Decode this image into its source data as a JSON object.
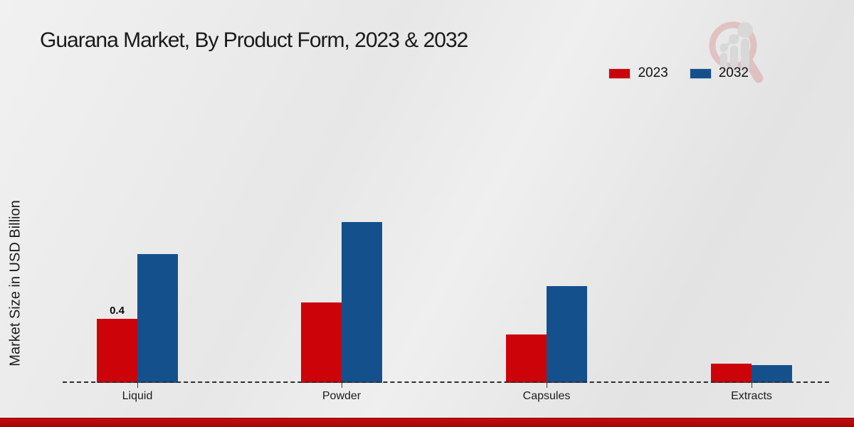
{
  "chart_data": {
    "type": "bar",
    "title": "Guarana Market, By Product Form, 2023 & 2032",
    "ylabel": "Market Size in USD Billion",
    "xlabel": "",
    "categories": [
      "Liquid",
      "Powder",
      "Capsules",
      "Extracts"
    ],
    "series": [
      {
        "name": "2023",
        "color": "#cc0409",
        "values": [
          0.4,
          0.5,
          0.3,
          0.12
        ]
      },
      {
        "name": "2032",
        "color": "#14508c",
        "values": [
          0.8,
          1.0,
          0.6,
          0.11
        ]
      }
    ],
    "value_labels": [
      {
        "series": "2023",
        "category": "Liquid",
        "text": "0.4"
      }
    ],
    "ylim": [
      0,
      1.0
    ],
    "grid": false,
    "legend_position": "top-right",
    "baseline_style": "dashed"
  },
  "watermark": {
    "icon": "magnifier-growth-chart-logo"
  },
  "footer": {
    "band_color": "#b30909"
  }
}
